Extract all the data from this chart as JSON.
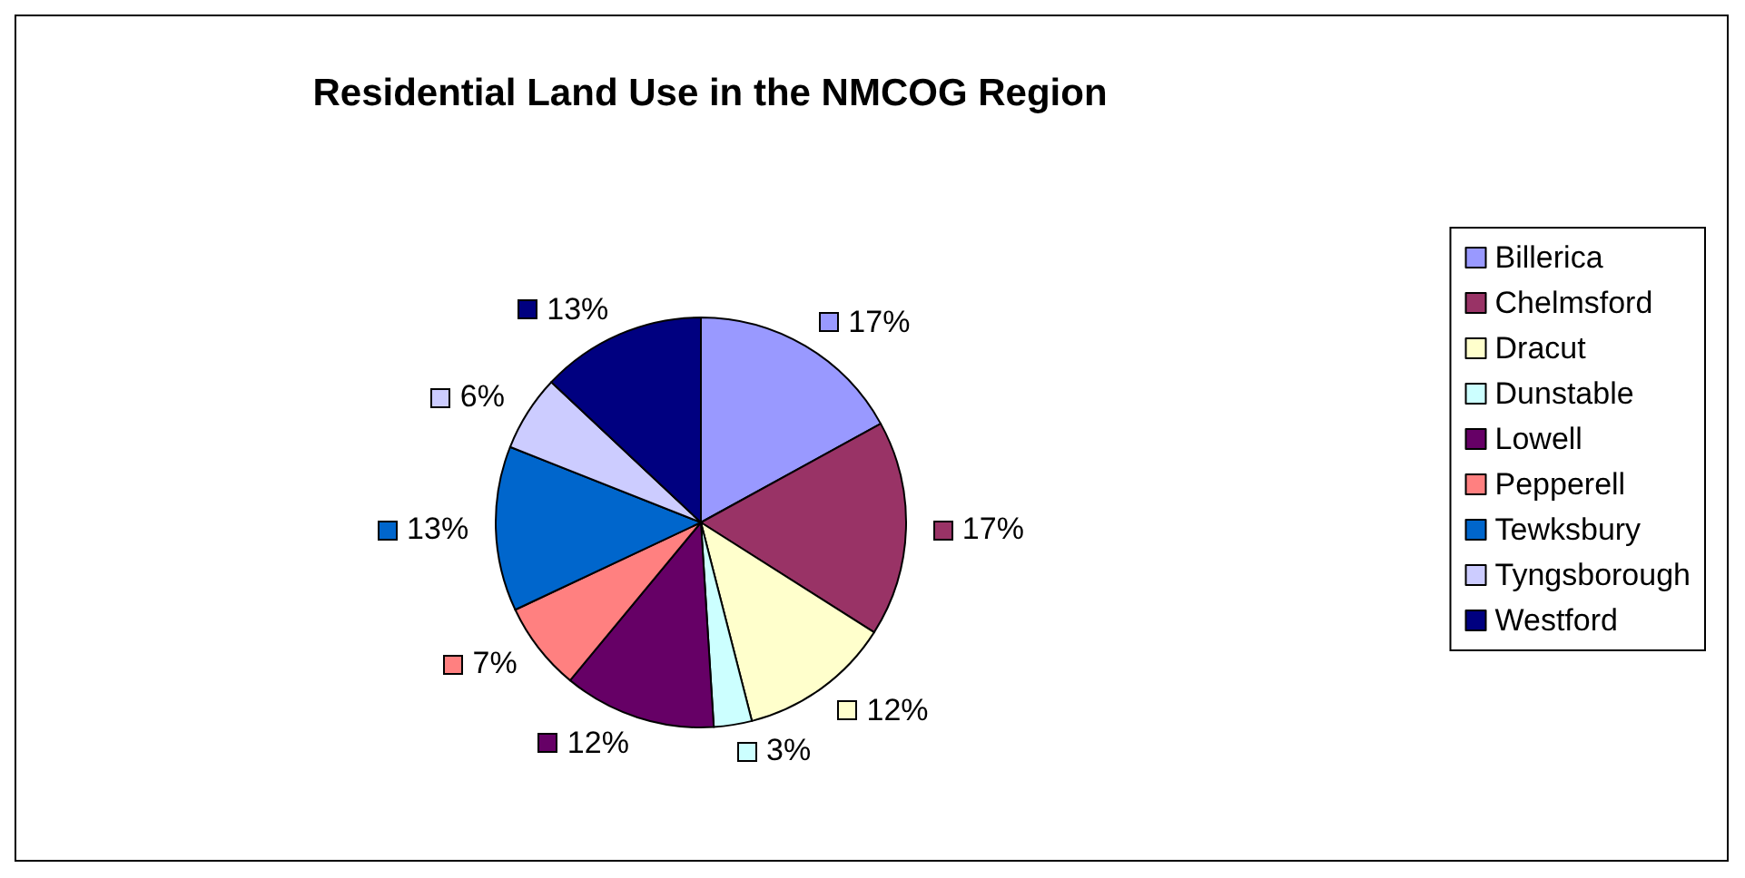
{
  "chart_data": {
    "type": "pie",
    "title": "Residential Land Use in the NMCOG Region",
    "categories": [
      "Billerica",
      "Chelmsford",
      "Dracut",
      "Dunstable",
      "Lowell",
      "Pepperell",
      "Tewksbury",
      "Tyngsborough",
      "Westford"
    ],
    "values": [
      17,
      17,
      12,
      3,
      12,
      7,
      13,
      6,
      13
    ],
    "colors": [
      "#9999ff",
      "#993366",
      "#ffffcc",
      "#ccffff",
      "#660066",
      "#ff8080",
      "#0066cc",
      "#ccccff",
      "#000080"
    ],
    "value_labels": [
      "17%",
      "17%",
      "12%",
      "3%",
      "12%",
      "7%",
      "13%",
      "6%",
      "13%"
    ],
    "legend": "right"
  }
}
